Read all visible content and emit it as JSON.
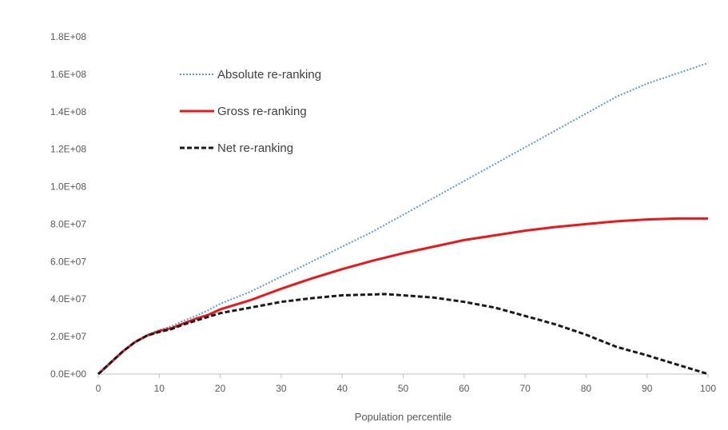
{
  "chart_data": {
    "type": "line",
    "title": "",
    "xlabel": "Population percentile",
    "ylabel": "",
    "xlim": [
      0,
      100
    ],
    "ylim": [
      0,
      180000000
    ],
    "xticks": [
      0,
      10,
      20,
      30,
      40,
      50,
      60,
      70,
      80,
      90,
      100
    ],
    "xtick_labels": [
      "0",
      "10",
      "20",
      "30",
      "40",
      "50",
      "60",
      "70",
      "80",
      "90",
      "100"
    ],
    "yticks": [
      0,
      20000000,
      40000000,
      60000000,
      80000000,
      100000000,
      120000000,
      140000000,
      160000000,
      180000000
    ],
    "ytick_labels": [
      "0.0E+00",
      "2.0E+07",
      "4.0E+07",
      "6.0E+07",
      "8.0E+07",
      "1.0E+08",
      "1.2E+08",
      "1.4E+08",
      "1.6E+08",
      "1.8E+08"
    ],
    "grid": false,
    "legend": "top-left",
    "series": [
      {
        "name": "Absolute re-ranking",
        "color": "#5B9BD5",
        "style": "dotted",
        "x": [
          0,
          2,
          4,
          6,
          8,
          10,
          12,
          14,
          16,
          18,
          20,
          25,
          30,
          35,
          40,
          45,
          50,
          55,
          60,
          65,
          70,
          75,
          80,
          85,
          90,
          95,
          100
        ],
        "y": [
          0,
          6000000,
          12000000,
          17000000,
          21000000,
          23500000,
          25500000,
          28500000,
          31000000,
          34000000,
          37500000,
          44000000,
          52000000,
          60000000,
          68000000,
          76000000,
          85000000,
          94000000,
          103000000,
          112000000,
          121000000,
          130000000,
          139000000,
          148000000,
          155000000,
          160500000,
          166000000
        ]
      },
      {
        "name": "Gross re-ranking",
        "color": "#E8191A",
        "style": "solid",
        "x": [
          0,
          2,
          4,
          6,
          8,
          10,
          12,
          14,
          16,
          18,
          20,
          25,
          30,
          35,
          40,
          45,
          50,
          55,
          60,
          65,
          70,
          75,
          80,
          85,
          90,
          95,
          100
        ],
        "y": [
          0,
          6000000,
          12000000,
          17000000,
          20500000,
          23000000,
          24500000,
          27000000,
          29500000,
          31500000,
          34500000,
          39500000,
          45500000,
          51000000,
          56000000,
          60500000,
          64500000,
          68000000,
          71500000,
          74000000,
          76500000,
          78500000,
          80000000,
          81500000,
          82500000,
          83000000,
          83000000
        ]
      },
      {
        "name": "Net re-ranking",
        "color": "#1A1A1A",
        "style": "dashed",
        "x": [
          0,
          2,
          4,
          6,
          8,
          10,
          12,
          14,
          16,
          18,
          20,
          25,
          30,
          35,
          40,
          45,
          47,
          50,
          55,
          60,
          65,
          70,
          75,
          80,
          85,
          90,
          95,
          100
        ],
        "y": [
          0,
          6000000,
          12000000,
          17000000,
          20500000,
          22500000,
          24000000,
          26500000,
          28500000,
          30500000,
          32500000,
          35500000,
          38500000,
          40500000,
          42000000,
          42500000,
          42700000,
          42000000,
          40800000,
          38500000,
          35500000,
          31000000,
          26500000,
          21000000,
          14500000,
          10000000,
          5000000,
          0
        ]
      }
    ]
  }
}
